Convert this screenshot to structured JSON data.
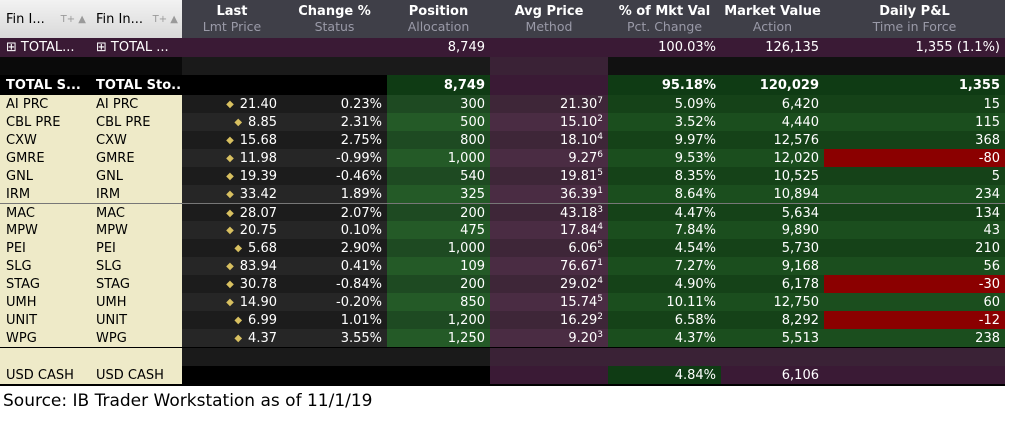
{
  "header": {
    "col0": "Fin I...",
    "col1": "Fin In...",
    "sort_glyph": "T+ ▲",
    "columns": [
      {
        "title": "Last",
        "sub": "Lmt Price"
      },
      {
        "title": "Change %",
        "sub": "Status"
      },
      {
        "title": "Position",
        "sub": "Allocation"
      },
      {
        "title": "Avg Price",
        "sub": "Method"
      },
      {
        "title": "% of Mkt Val",
        "sub": "Pct. Change"
      },
      {
        "title": "Market Value",
        "sub": "Action"
      },
      {
        "title": "Daily P&L",
        "sub": "Time in Force"
      }
    ]
  },
  "summary": {
    "expand_icon": "⊞",
    "col0": "TOTAL...",
    "col1": "TOTAL ...",
    "position": "8,749",
    "pct_mkt_val": "100.03%",
    "market_value": "126,135",
    "daily_pnl": "1,355 (1.1%)"
  },
  "total": {
    "col0": "TOTAL S...",
    "col1": "TOTAL Sto...",
    "position": "8,749",
    "pct_mkt_val": "95.18%",
    "market_value": "120,029",
    "daily_pnl": "1,355"
  },
  "positions": [
    {
      "sym": "AI PRC",
      "sym2": "AI PRC",
      "last": "21.40",
      "change": "0.23%",
      "position": "300",
      "avg": "21.30",
      "avg_sup": "7",
      "pct": "5.09%",
      "mv": "6,420",
      "pnl": "15",
      "pnl_negative": false
    },
    {
      "sym": "CBL PRE",
      "sym2": "CBL PRE",
      "last": "8.85",
      "change": "2.31%",
      "position": "500",
      "avg": "15.10",
      "avg_sup": "2",
      "pct": "3.52%",
      "mv": "4,440",
      "pnl": "115",
      "pnl_negative": false
    },
    {
      "sym": "CXW",
      "sym2": "CXW",
      "last": "15.68",
      "change": "2.75%",
      "position": "800",
      "avg": "18.10",
      "avg_sup": "4",
      "pct": "9.97%",
      "mv": "12,576",
      "pnl": "368",
      "pnl_negative": false
    },
    {
      "sym": "GMRE",
      "sym2": "GMRE",
      "last": "11.98",
      "change": "-0.99%",
      "position": "1,000",
      "avg": "9.27",
      "avg_sup": "6",
      "pct": "9.53%",
      "mv": "12,020",
      "pnl": "-80",
      "pnl_negative": true
    },
    {
      "sym": "GNL",
      "sym2": "GNL",
      "last": "19.39",
      "change": "-0.46%",
      "position": "540",
      "avg": "19.81",
      "avg_sup": "5",
      "pct": "8.35%",
      "mv": "10,525",
      "pnl": "5",
      "pnl_negative": false
    },
    {
      "sym": "IRM",
      "sym2": "IRM",
      "last": "33.42",
      "change": "1.89%",
      "position": "325",
      "avg": "36.39",
      "avg_sup": "1",
      "pct": "8.64%",
      "mv": "10,894",
      "pnl": "234",
      "pnl_negative": false
    },
    {
      "sym": "MAC",
      "sym2": "MAC",
      "last": "28.07",
      "change": "2.07%",
      "position": "200",
      "avg": "43.18",
      "avg_sup": "3",
      "pct": "4.47%",
      "mv": "5,634",
      "pnl": "134",
      "pnl_negative": false
    },
    {
      "sym": "MPW",
      "sym2": "MPW",
      "last": "20.75",
      "change": "0.10%",
      "position": "475",
      "avg": "17.84",
      "avg_sup": "4",
      "pct": "7.84%",
      "mv": "9,890",
      "pnl": "43",
      "pnl_negative": false
    },
    {
      "sym": "PEI",
      "sym2": "PEI",
      "last": "5.68",
      "change": "2.90%",
      "position": "1,000",
      "avg": "6.06",
      "avg_sup": "5",
      "pct": "4.54%",
      "mv": "5,730",
      "pnl": "210",
      "pnl_negative": false
    },
    {
      "sym": "SLG",
      "sym2": "SLG",
      "last": "83.94",
      "change": "0.41%",
      "position": "109",
      "avg": "76.67",
      "avg_sup": "1",
      "pct": "7.27%",
      "mv": "9,168",
      "pnl": "56",
      "pnl_negative": false
    },
    {
      "sym": "STAG",
      "sym2": "STAG",
      "last": "30.78",
      "change": "-0.84%",
      "position": "200",
      "avg": "29.02",
      "avg_sup": "4",
      "pct": "4.90%",
      "mv": "6,178",
      "pnl": "-30",
      "pnl_negative": true
    },
    {
      "sym": "UMH",
      "sym2": "UMH",
      "last": "14.90",
      "change": "-0.20%",
      "position": "850",
      "avg": "15.74",
      "avg_sup": "5",
      "pct": "10.11%",
      "mv": "12,750",
      "pnl": "60",
      "pnl_negative": false
    },
    {
      "sym": "UNIT",
      "sym2": "UNIT",
      "last": "6.99",
      "change": "1.01%",
      "position": "1,200",
      "avg": "16.29",
      "avg_sup": "2",
      "pct": "6.58%",
      "mv": "8,292",
      "pnl": "-12",
      "pnl_negative": true
    },
    {
      "sym": "WPG",
      "sym2": "WPG",
      "last": "4.37",
      "change": "3.55%",
      "position": "1,250",
      "avg": "9.20",
      "avg_sup": "3",
      "pct": "4.37%",
      "mv": "5,513",
      "pnl": "238",
      "pnl_negative": false
    }
  ],
  "cash": {
    "col0": "USD CASH",
    "col1": "USD CASH",
    "pct_mkt_val": "4.84%",
    "market_value": "6,106"
  },
  "colors": {
    "header_bg": "#3f3f48",
    "symbol_bg": "#eeeac8",
    "summary_bg": "#3a1a35",
    "position_col_bg": "#1f4a22",
    "avg_price_col_bg": "#3e2638",
    "negative_pnl_bg": "#8b0000",
    "total_green": "#0f3b14",
    "diamond": "#d8c060"
  },
  "icons": {
    "diamond": "◆",
    "expand": "⊞"
  },
  "footer_note": "Source:  IB Trader Workstation as of 11/1/19"
}
